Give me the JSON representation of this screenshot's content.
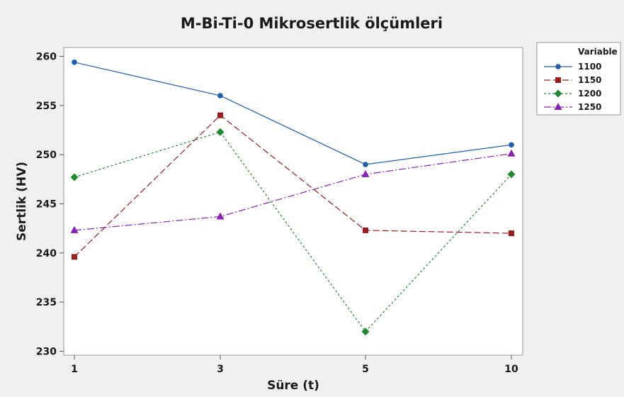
{
  "chart_data": {
    "type": "line",
    "title": "M-Bi-Ti-0 Mikrosertlik ölçümleri",
    "xlabel": "Süre (t)",
    "ylabel": "Sertlik (HV)",
    "categories": [
      "1",
      "3",
      "5",
      "10"
    ],
    "ylim": [
      229.6,
      260.9
    ],
    "yticks": [
      230,
      235,
      240,
      245,
      250,
      255,
      260
    ],
    "grid": false,
    "legend": {
      "title": "Variable",
      "position": "right"
    },
    "series": [
      {
        "name": "1100",
        "values": [
          259.4,
          256.0,
          249.0,
          251.0
        ],
        "color": "#1f5fad",
        "marker": "circle",
        "dash": ""
      },
      {
        "name": "1150",
        "values": [
          239.6,
          254.0,
          242.3,
          242.0
        ],
        "color": "#9b1c1c",
        "marker": "square",
        "dash": "9,4"
      },
      {
        "name": "1200",
        "values": [
          247.7,
          252.3,
          232.0,
          248.0
        ],
        "color": "#1f8a2e",
        "marker": "diamond",
        "dash": "3,3"
      },
      {
        "name": "1250",
        "values": [
          242.3,
          243.7,
          248.0,
          250.1
        ],
        "color": "#8a1fb5",
        "marker": "triangle",
        "dash": "10,3,2,3"
      }
    ]
  }
}
